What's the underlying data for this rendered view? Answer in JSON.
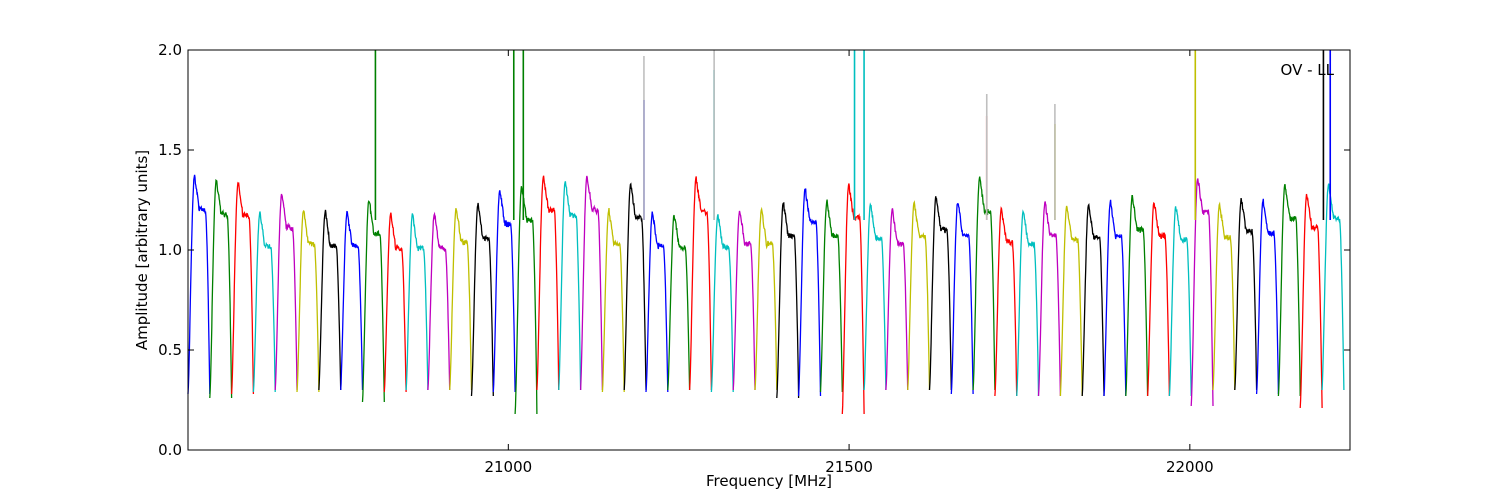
{
  "chart_data": {
    "type": "line",
    "title": "",
    "xlabel": "Frequency [MHz]",
    "ylabel": "Amplitude [arbitrary units]",
    "annotation": "OV - LL",
    "xlim": [
      20530,
      22235
    ],
    "ylim": [
      0.0,
      2.0
    ],
    "xticks": [
      21000,
      21500,
      22000
    ],
    "xtick_labels": [
      "21000",
      "21500",
      "22000"
    ],
    "yticks": [
      0.0,
      0.5,
      1.0,
      1.5,
      2.0
    ],
    "ytick_labels": [
      "0.0",
      "0.5",
      "1.0",
      "1.5",
      "2.0"
    ],
    "grid": false,
    "legend": "none",
    "color_cycle": [
      "#0000ff",
      "#008000",
      "#ff0000",
      "#00bfbf",
      "#bf00bf",
      "#bfbf00",
      "#000000"
    ],
    "subband_width_mhz": 32,
    "subband_starts": [
      20530,
      20562,
      20594,
      20626,
      20658,
      20690,
      20722,
      20754,
      20786,
      20818,
      20850,
      20882,
      20914,
      20946,
      20978,
      21010,
      21042,
      21074,
      21106,
      21138,
      21170,
      21202,
      21234,
      21266,
      21298,
      21330,
      21362,
      21394,
      21426,
      21458,
      21490,
      21522,
      21554,
      21586,
      21618,
      21650,
      21682,
      21714,
      21746,
      21778,
      21810,
      21842,
      21874,
      21906,
      21938,
      21970,
      22002,
      22034,
      22066,
      22098,
      22130,
      22162,
      22194
    ],
    "subband_peaks": [
      1.37,
      1.35,
      1.34,
      1.19,
      1.28,
      1.2,
      1.19,
      1.19,
      1.25,
      1.18,
      1.18,
      1.18,
      1.21,
      1.23,
      1.3,
      1.32,
      1.37,
      1.34,
      1.37,
      1.2,
      1.33,
      1.19,
      1.18,
      1.36,
      1.18,
      1.2,
      1.2,
      1.24,
      1.31,
      1.24,
      1.33,
      1.23,
      1.2,
      1.24,
      1.27,
      1.24,
      1.36,
      1.21,
      1.2,
      1.24,
      1.22,
      1.23,
      1.24,
      1.27,
      1.24,
      1.22,
      1.36,
      1.23,
      1.26,
      1.25,
      1.33,
      1.28,
      1.33
    ],
    "subband_troughs": [
      0.28,
      0.26,
      0.28,
      0.29,
      0.3,
      0.29,
      0.3,
      0.3,
      0.24,
      0.29,
      0.3,
      0.3,
      0.3,
      0.27,
      0.29,
      0.18,
      0.3,
      0.3,
      0.3,
      0.29,
      0.3,
      0.29,
      0.3,
      0.3,
      0.29,
      0.3,
      0.3,
      0.26,
      0.27,
      0.29,
      0.18,
      0.3,
      0.3,
      0.3,
      0.3,
      0.28,
      0.3,
      0.27,
      0.27,
      0.27,
      0.27,
      0.27,
      0.27,
      0.27,
      0.27,
      0.27,
      0.22,
      0.3,
      0.3,
      0.28,
      0.27,
      0.21,
      0.3
    ],
    "spikes": [
      {
        "x": 20805,
        "y": 2.0,
        "color": "#008000"
      },
      {
        "x": 21008,
        "y": 2.0,
        "color": "#008000"
      },
      {
        "x": 21022,
        "y": 2.0,
        "color": "#008000"
      },
      {
        "x": 21199,
        "y": 1.75,
        "color": "#0000ff"
      },
      {
        "x": 21199,
        "y": 1.97,
        "color": "#bfbfbf"
      },
      {
        "x": 21302,
        "y": 1.9,
        "color": "#00bfbf"
      },
      {
        "x": 21302,
        "y": 2.0,
        "color": "#bfbfbf"
      },
      {
        "x": 21508,
        "y": 2.0,
        "color": "#00bfbf"
      },
      {
        "x": 21522,
        "y": 2.0,
        "color": "#00bfbf"
      },
      {
        "x": 21702,
        "y": 1.67,
        "color": "#ff0000"
      },
      {
        "x": 21702,
        "y": 1.78,
        "color": "#bfbfbf"
      },
      {
        "x": 21802,
        "y": 1.63,
        "color": "#bfbf00"
      },
      {
        "x": 21802,
        "y": 1.73,
        "color": "#bfbfbf"
      },
      {
        "x": 22008,
        "y": 2.0,
        "color": "#bfbf00"
      },
      {
        "x": 22196,
        "y": 2.0,
        "color": "#000000"
      },
      {
        "x": 22206,
        "y": 2.0,
        "color": "#0000ff"
      }
    ]
  }
}
